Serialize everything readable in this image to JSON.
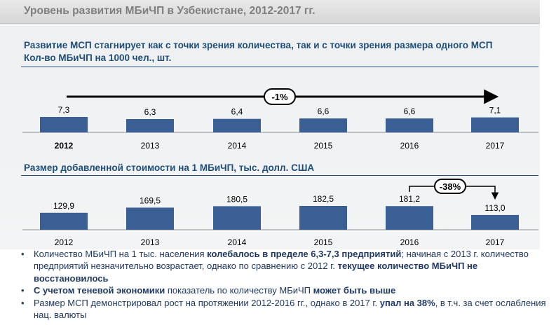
{
  "header": {
    "title": "Уровень развития МБиЧП в Узбекистане, 2012-2017 гг."
  },
  "subtitle": {
    "line1": "Развитие МСП стагнирует как с точки зрения количества, так и с точки зрения размера одного МСП",
    "line2": "Кол-во МБиЧП на 1000 чел., шт."
  },
  "chart_data": [
    {
      "type": "bar",
      "title": "Кол-во МБиЧП на 1000 чел., шт.",
      "categories": [
        "2012",
        "2013",
        "2014",
        "2015",
        "2016",
        "2017"
      ],
      "values": [
        7.3,
        6.3,
        6.4,
        6.6,
        6.6,
        7.1
      ],
      "labels": [
        "7,3",
        "6,3",
        "6,4",
        "6,6",
        "6,6",
        "7,1"
      ],
      "highlight_category": "2012",
      "annotation": {
        "text": "-1%",
        "type": "arrow",
        "from": "2012",
        "to": "2017"
      },
      "color": "#3a5f94"
    },
    {
      "type": "bar",
      "title": "Размер добавленной стоимости на 1 МБиЧП, тыс. долл. США",
      "categories": [
        "2012",
        "2013",
        "2014",
        "2015",
        "2016",
        "2017"
      ],
      "values": [
        129.9,
        169.5,
        180.5,
        182.5,
        181.2,
        113.0
      ],
      "labels": [
        "129,9",
        "169,5",
        "180,5",
        "182,5",
        "181,2",
        "113,0"
      ],
      "annotation": {
        "text": "-38%",
        "type": "bracket-arrow",
        "from": "2016",
        "to": "2017"
      },
      "color": "#3a5f94"
    }
  ],
  "bullets": [
    [
      {
        "t": "Количество МБиЧП на 1 тыс. населения ",
        "b": false
      },
      {
        "t": "колебалось в пределе 6,3-7,3 предприятий",
        "b": true
      },
      {
        "t": "; начиная с 2013 г. количество предприятий незначительно возрастает, однако по сравнению с 2012 г. ",
        "b": false
      },
      {
        "t": "текущее количество МБиЧП не восстановилось",
        "b": true
      }
    ],
    [
      {
        "t": "С учетом теневой экономики",
        "b": true
      },
      {
        "t": " показатель по количеству МБиЧП ",
        "b": false
      },
      {
        "t": "может быть выше",
        "b": true
      }
    ],
    [
      {
        "t": "Размер МСП демонстрировал рост на протяжении 2012-2016 гг., однако в 2017 г. ",
        "b": false
      },
      {
        "t": "упал на 38%",
        "b": true
      },
      {
        "t": ", в т.ч. за счет ослабления нац. валюты",
        "b": false
      }
    ]
  ]
}
